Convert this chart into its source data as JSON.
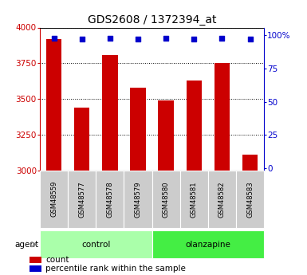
{
  "title": "GDS2608 / 1372394_at",
  "samples": [
    "GSM48559",
    "GSM48577",
    "GSM48578",
    "GSM48579",
    "GSM48580",
    "GSM48581",
    "GSM48582",
    "GSM48583"
  ],
  "counts": [
    3920,
    3440,
    3810,
    3580,
    3490,
    3630,
    3750,
    3110
  ],
  "percentiles": [
    98,
    97,
    98,
    97,
    98,
    97,
    98,
    97
  ],
  "ylim": [
    3000,
    4000
  ],
  "yticks": [
    3000,
    3250,
    3500,
    3750,
    4000
  ],
  "right_yticks": [
    0,
    25,
    50,
    75,
    100
  ],
  "bar_color": "#cc0000",
  "dot_color": "#0000cc",
  "control_color": "#aaffaa",
  "olanzapine_color": "#44ee44",
  "sample_bg_color": "#cccccc",
  "left_tick_color": "#cc0000",
  "right_tick_color": "#0000cc",
  "agent_label": "agent",
  "legend_count_label": "count",
  "legend_percentile_label": "percentile rank within the sample",
  "bar_width": 0.55,
  "title_fontsize": 10,
  "tick_fontsize": 7.5,
  "label_fontsize": 7.5,
  "legend_fontsize": 7.5
}
